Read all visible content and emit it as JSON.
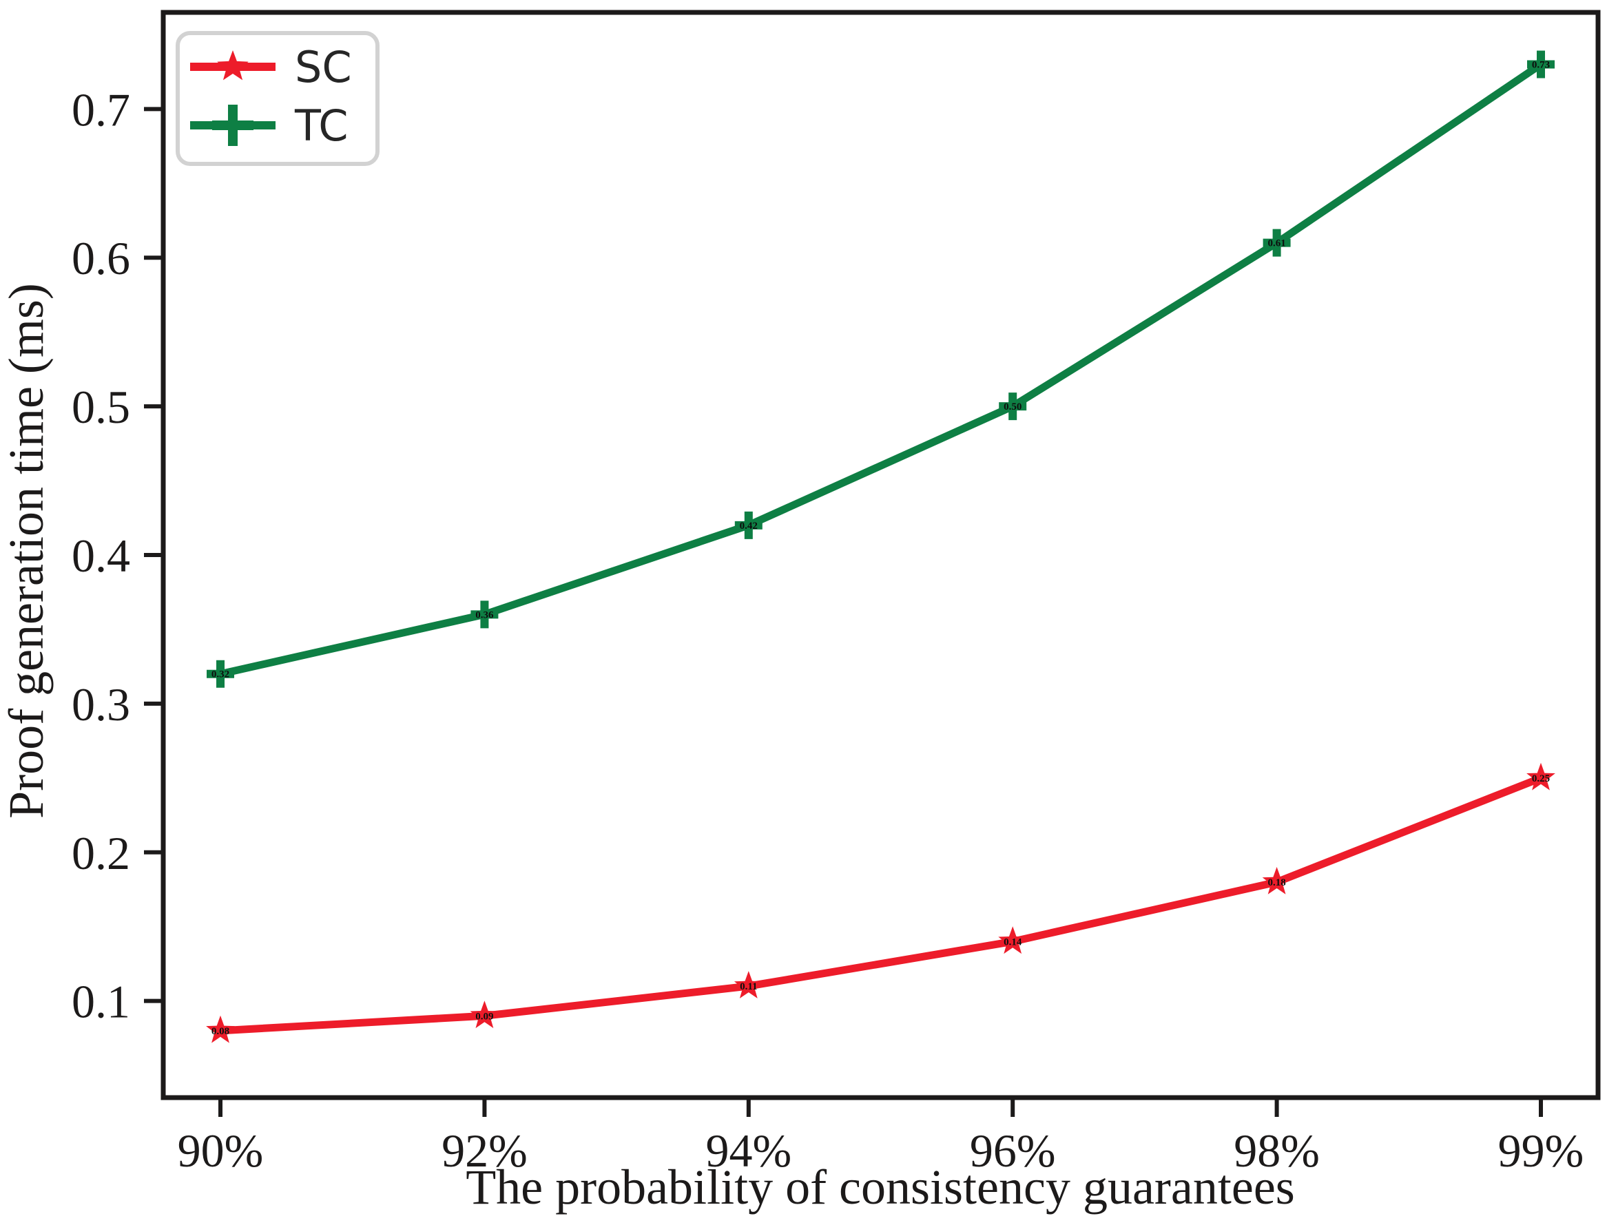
{
  "figure": {
    "background": "#ffffff",
    "axis_color": "#1c1a1a",
    "legend_border_color": "#d2d2d2"
  },
  "chart_data": {
    "type": "line",
    "title": "",
    "xlabel": "The probability of consistency guarantees",
    "ylabel": "Proof generation time (ms)",
    "categories": [
      "90%",
      "92%",
      "94%",
      "96%",
      "98%",
      "99%"
    ],
    "series": [
      {
        "name": "SC",
        "color": "#ed1c2a",
        "marker": "star",
        "values": [
          0.08,
          0.09,
          0.11,
          0.14,
          0.18,
          0.25
        ]
      },
      {
        "name": "TC",
        "color": "#0e7f44",
        "marker": "plus",
        "values": [
          0.32,
          0.36,
          0.42,
          0.5,
          0.61,
          0.73
        ]
      }
    ],
    "yticks": [
      0.1,
      0.2,
      0.3,
      0.4,
      0.5,
      0.6,
      0.7
    ],
    "ylim": [
      0.035,
      0.765
    ],
    "grid": false,
    "legend_position": "upper left",
    "point_labels_format": "2dp"
  }
}
